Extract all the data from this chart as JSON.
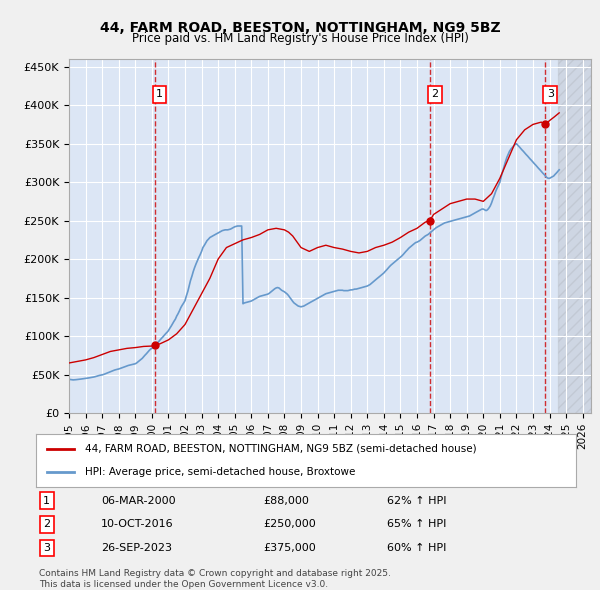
{
  "title_line1": "44, FARM ROAD, BEESTON, NOTTINGHAM, NG9 5BZ",
  "title_line2": "Price paid vs. HM Land Registry's House Price Index (HPI)",
  "ylabel": "",
  "background_color": "#e8eef8",
  "plot_bg_color": "#dce6f5",
  "grid_color": "#ffffff",
  "red_line_color": "#cc0000",
  "blue_line_color": "#6699cc",
  "sale_marker_color": "#cc0000",
  "dashed_line_color": "#cc0000",
  "ylim": [
    0,
    460000
  ],
  "yticks": [
    0,
    50000,
    100000,
    150000,
    200000,
    250000,
    300000,
    350000,
    400000,
    450000
  ],
  "ytick_labels": [
    "£0",
    "£50K",
    "£100K",
    "£150K",
    "£200K",
    "£250K",
    "£300K",
    "£350K",
    "£400K",
    "£450K"
  ],
  "xlim_start": 1995.0,
  "xlim_end": 2026.5,
  "sale_points": [
    {
      "label": "1",
      "date_num": 2000.17,
      "price": 88000,
      "date_str": "06-MAR-2000",
      "price_str": "£88,000",
      "hpi_str": "62% ↑ HPI"
    },
    {
      "label": "2",
      "date_num": 2016.78,
      "price": 250000,
      "date_str": "10-OCT-2016",
      "price_str": "£250,000",
      "hpi_str": "65% ↑ HPI"
    },
    {
      "label": "3",
      "date_num": 2023.74,
      "price": 375000,
      "date_str": "26-SEP-2023",
      "price_str": "£375,000",
      "hpi_str": "60% ↑ HPI"
    }
  ],
  "legend_label_red": "44, FARM ROAD, BEESTON, NOTTINGHAM, NG9 5BZ (semi-detached house)",
  "legend_label_blue": "HPI: Average price, semi-detached house, Broxtowe",
  "footer_text": "Contains HM Land Registry data © Crown copyright and database right 2025.\nThis data is licensed under the Open Government Licence v3.0.",
  "hpi_data": {
    "dates": [
      1995.0,
      1995.08,
      1995.17,
      1995.25,
      1995.33,
      1995.42,
      1995.5,
      1995.58,
      1995.67,
      1995.75,
      1995.83,
      1995.92,
      1996.0,
      1996.08,
      1996.17,
      1996.25,
      1996.33,
      1996.42,
      1996.5,
      1996.58,
      1996.67,
      1996.75,
      1996.83,
      1996.92,
      1997.0,
      1997.08,
      1997.17,
      1997.25,
      1997.33,
      1997.42,
      1997.5,
      1997.58,
      1997.67,
      1997.75,
      1997.83,
      1997.92,
      1998.0,
      1998.08,
      1998.17,
      1998.25,
      1998.33,
      1998.42,
      1998.5,
      1998.58,
      1998.67,
      1998.75,
      1998.83,
      1998.92,
      1999.0,
      1999.08,
      1999.17,
      1999.25,
      1999.33,
      1999.42,
      1999.5,
      1999.58,
      1999.67,
      1999.75,
      1999.83,
      1999.92,
      2000.0,
      2000.08,
      2000.17,
      2000.25,
      2000.33,
      2000.42,
      2000.5,
      2000.58,
      2000.67,
      2000.75,
      2000.83,
      2000.92,
      2001.0,
      2001.08,
      2001.17,
      2001.25,
      2001.33,
      2001.42,
      2001.5,
      2001.58,
      2001.67,
      2001.75,
      2001.83,
      2001.92,
      2002.0,
      2002.08,
      2002.17,
      2002.25,
      2002.33,
      2002.42,
      2002.5,
      2002.58,
      2002.67,
      2002.75,
      2002.83,
      2002.92,
      2003.0,
      2003.08,
      2003.17,
      2003.25,
      2003.33,
      2003.42,
      2003.5,
      2003.58,
      2003.67,
      2003.75,
      2003.83,
      2003.92,
      2004.0,
      2004.08,
      2004.17,
      2004.25,
      2004.33,
      2004.42,
      2004.5,
      2004.58,
      2004.67,
      2004.75,
      2004.83,
      2004.92,
      2005.0,
      2005.08,
      2005.17,
      2005.25,
      2005.33,
      2005.42,
      2005.5,
      2005.58,
      2005.67,
      2005.75,
      2005.83,
      2005.92,
      2006.0,
      2006.08,
      2006.17,
      2006.25,
      2006.33,
      2006.42,
      2006.5,
      2006.58,
      2006.67,
      2006.75,
      2006.83,
      2006.92,
      2007.0,
      2007.08,
      2007.17,
      2007.25,
      2007.33,
      2007.42,
      2007.5,
      2007.58,
      2007.67,
      2007.75,
      2007.83,
      2007.92,
      2008.0,
      2008.08,
      2008.17,
      2008.25,
      2008.33,
      2008.42,
      2008.5,
      2008.58,
      2008.67,
      2008.75,
      2008.83,
      2008.92,
      2009.0,
      2009.08,
      2009.17,
      2009.25,
      2009.33,
      2009.42,
      2009.5,
      2009.58,
      2009.67,
      2009.75,
      2009.83,
      2009.92,
      2010.0,
      2010.08,
      2010.17,
      2010.25,
      2010.33,
      2010.42,
      2010.5,
      2010.58,
      2010.67,
      2010.75,
      2010.83,
      2010.92,
      2011.0,
      2011.08,
      2011.17,
      2011.25,
      2011.33,
      2011.42,
      2011.5,
      2011.58,
      2011.67,
      2011.75,
      2011.83,
      2011.92,
      2012.0,
      2012.08,
      2012.17,
      2012.25,
      2012.33,
      2012.42,
      2012.5,
      2012.58,
      2012.67,
      2012.75,
      2012.83,
      2012.92,
      2013.0,
      2013.08,
      2013.17,
      2013.25,
      2013.33,
      2013.42,
      2013.5,
      2013.58,
      2013.67,
      2013.75,
      2013.83,
      2013.92,
      2014.0,
      2014.08,
      2014.17,
      2014.25,
      2014.33,
      2014.42,
      2014.5,
      2014.58,
      2014.67,
      2014.75,
      2014.83,
      2014.92,
      2015.0,
      2015.08,
      2015.17,
      2015.25,
      2015.33,
      2015.42,
      2015.5,
      2015.58,
      2015.67,
      2015.75,
      2015.83,
      2015.92,
      2016.0,
      2016.08,
      2016.17,
      2016.25,
      2016.33,
      2016.42,
      2016.5,
      2016.58,
      2016.67,
      2016.75,
      2016.83,
      2016.92,
      2017.0,
      2017.08,
      2017.17,
      2017.25,
      2017.33,
      2017.42,
      2017.5,
      2017.58,
      2017.67,
      2017.75,
      2017.83,
      2017.92,
      2018.0,
      2018.08,
      2018.17,
      2018.25,
      2018.33,
      2018.42,
      2018.5,
      2018.58,
      2018.67,
      2018.75,
      2018.83,
      2018.92,
      2019.0,
      2019.08,
      2019.17,
      2019.25,
      2019.33,
      2019.42,
      2019.5,
      2019.58,
      2019.67,
      2019.75,
      2019.83,
      2019.92,
      2020.0,
      2020.08,
      2020.17,
      2020.25,
      2020.33,
      2020.42,
      2020.5,
      2020.58,
      2020.67,
      2020.75,
      2020.83,
      2020.92,
      2021.0,
      2021.08,
      2021.17,
      2021.25,
      2021.33,
      2021.42,
      2021.5,
      2021.58,
      2021.67,
      2021.75,
      2021.83,
      2021.92,
      2022.0,
      2022.08,
      2022.17,
      2022.25,
      2022.33,
      2022.42,
      2022.5,
      2022.58,
      2022.67,
      2022.75,
      2022.83,
      2022.92,
      2023.0,
      2023.08,
      2023.17,
      2023.25,
      2023.33,
      2023.42,
      2023.5,
      2023.58,
      2023.67,
      2023.75,
      2023.83,
      2023.92,
      2024.0,
      2024.08,
      2024.17,
      2024.25,
      2024.33,
      2024.42,
      2024.5,
      2024.58
    ],
    "values": [
      44000,
      43500,
      43200,
      43000,
      43100,
      43300,
      43500,
      43800,
      44000,
      44200,
      44500,
      44800,
      45000,
      45200,
      45500,
      45800,
      46000,
      46300,
      46800,
      47200,
      47800,
      48300,
      48800,
      49200,
      49500,
      50000,
      50800,
      51500,
      52200,
      53000,
      53800,
      54500,
      55200,
      55800,
      56300,
      56800,
      57200,
      57800,
      58500,
      59200,
      59800,
      60500,
      61200,
      61800,
      62300,
      62800,
      63200,
      63600,
      64000,
      65000,
      66500,
      68000,
      69500,
      71000,
      73000,
      75000,
      77000,
      79000,
      81000,
      83000,
      84000,
      85500,
      87000,
      89000,
      91000,
      93000,
      95000,
      97000,
      99000,
      101000,
      103000,
      105000,
      107000,
      110000,
      113000,
      116000,
      119000,
      122000,
      126000,
      129000,
      133000,
      137000,
      140000,
      143000,
      146000,
      152000,
      158000,
      165000,
      172000,
      178000,
      184000,
      189000,
      194000,
      198000,
      202000,
      206000,
      210000,
      215000,
      218000,
      221000,
      224000,
      226000,
      228000,
      229000,
      230000,
      231000,
      232000,
      233000,
      234000,
      235000,
      236000,
      237000,
      237500,
      238000,
      238000,
      238000,
      238500,
      239000,
      240000,
      241000,
      242000,
      242500,
      243000,
      243000,
      243000,
      243000,
      142000,
      143000,
      143500,
      144000,
      144500,
      145000,
      145500,
      146500,
      147500,
      148500,
      149500,
      150500,
      151500,
      152000,
      152500,
      153000,
      153500,
      154000,
      154500,
      155500,
      157000,
      158500,
      160000,
      161500,
      162500,
      163000,
      162500,
      161000,
      159500,
      158500,
      157500,
      156000,
      154500,
      152500,
      150000,
      147500,
      145000,
      143000,
      141500,
      140000,
      139000,
      138500,
      138000,
      138500,
      139000,
      140000,
      141000,
      142000,
      143000,
      144000,
      145000,
      146000,
      147000,
      148000,
      149000,
      150000,
      151000,
      152000,
      153000,
      154000,
      155000,
      155500,
      156000,
      156500,
      157000,
      157500,
      158000,
      158500,
      159000,
      159500,
      159500,
      159500,
      159500,
      159000,
      159000,
      159000,
      159000,
      159500,
      160000,
      160000,
      160500,
      161000,
      161000,
      161500,
      162000,
      162500,
      163000,
      163500,
      164000,
      164500,
      165000,
      166000,
      167000,
      168500,
      170000,
      171500,
      173000,
      174500,
      176000,
      177500,
      179000,
      180500,
      182000,
      184000,
      186000,
      188000,
      190000,
      192000,
      193500,
      195000,
      196500,
      198000,
      199500,
      201000,
      202500,
      204000,
      206000,
      208000,
      210000,
      212000,
      214000,
      215500,
      217000,
      218500,
      220000,
      221500,
      222000,
      223000,
      224000,
      225500,
      227000,
      228500,
      230000,
      231000,
      232000,
      233500,
      235000,
      236500,
      238000,
      239500,
      241000,
      242000,
      243000,
      244000,
      245000,
      246000,
      247000,
      247500,
      248000,
      248500,
      249000,
      249500,
      250000,
      250500,
      251000,
      251500,
      252000,
      252500,
      253000,
      253500,
      254000,
      254500,
      255000,
      255500,
      256000,
      257000,
      258000,
      259000,
      260000,
      261000,
      262000,
      263000,
      264000,
      265000,
      265000,
      264000,
      263000,
      264000,
      266000,
      269000,
      273000,
      278000,
      283000,
      288000,
      292000,
      296000,
      300000,
      307000,
      314000,
      320000,
      326000,
      332000,
      336000,
      340000,
      343000,
      345000,
      347000,
      349000,
      350000,
      348000,
      346000,
      344000,
      342000,
      340000,
      338000,
      336000,
      334000,
      332000,
      330000,
      328000,
      326000,
      324000,
      322000,
      320000,
      318000,
      316000,
      314000,
      312000,
      310000,
      308000,
      306000,
      305000,
      305000,
      306000,
      307000,
      308000,
      310000,
      312000,
      314000,
      316000
    ]
  },
  "red_line_data": {
    "dates": [
      1995.0,
      1995.5,
      1996.0,
      1996.5,
      1997.0,
      1997.5,
      1998.0,
      1998.5,
      1999.0,
      1999.5,
      2000.0,
      2000.17,
      2000.5,
      2001.0,
      2001.5,
      2002.0,
      2002.5,
      2003.0,
      2003.5,
      2004.0,
      2004.5,
      2005.0,
      2005.5,
      2006.0,
      2006.5,
      2007.0,
      2007.5,
      2008.0,
      2008.25,
      2008.5,
      2009.0,
      2009.5,
      2010.0,
      2010.5,
      2011.0,
      2011.5,
      2012.0,
      2012.5,
      2013.0,
      2013.5,
      2014.0,
      2014.5,
      2015.0,
      2015.5,
      2016.0,
      2016.5,
      2016.78,
      2017.0,
      2017.5,
      2018.0,
      2018.5,
      2019.0,
      2019.5,
      2020.0,
      2020.5,
      2021.0,
      2021.5,
      2022.0,
      2022.5,
      2023.0,
      2023.5,
      2023.74,
      2024.0,
      2024.3,
      2024.58
    ],
    "values": [
      65000,
      67000,
      69000,
      72000,
      76000,
      80000,
      82000,
      84000,
      85000,
      86500,
      87000,
      88000,
      90000,
      95000,
      103000,
      115000,
      135000,
      155000,
      175000,
      200000,
      215000,
      220000,
      225000,
      228000,
      232000,
      238000,
      240000,
      238000,
      235000,
      230000,
      215000,
      210000,
      215000,
      218000,
      215000,
      213000,
      210000,
      208000,
      210000,
      215000,
      218000,
      222000,
      228000,
      235000,
      240000,
      248000,
      250000,
      258000,
      265000,
      272000,
      275000,
      278000,
      278000,
      275000,
      285000,
      305000,
      330000,
      355000,
      368000,
      375000,
      378000,
      375000,
      380000,
      385000,
      390000
    ]
  }
}
